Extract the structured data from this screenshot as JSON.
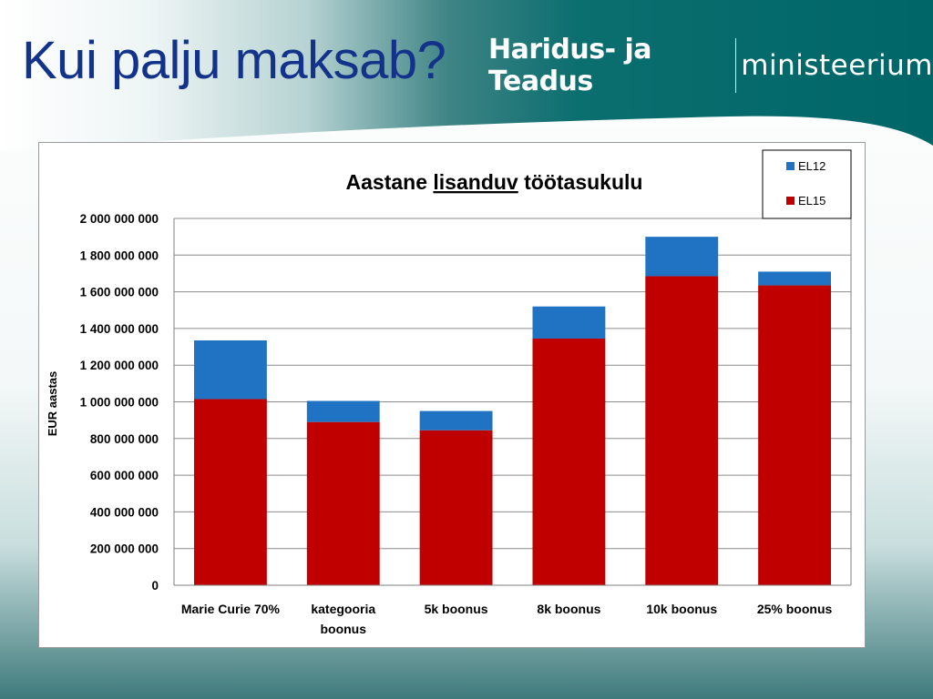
{
  "slide": {
    "title": "Kui palju maksab?",
    "logo": {
      "bold_text": "Haridus- ja Teadus",
      "light_text": "ministeerium"
    },
    "colors": {
      "title": "#13338a",
      "header_teal": "#006f70"
    }
  },
  "chart_data": {
    "type": "bar",
    "stacked": true,
    "title_parts": [
      "Aastane ",
      "lisanduv",
      " töötasukulu"
    ],
    "title_underlined_part": "lisanduv",
    "xlabel": "",
    "ylabel": "EUR aastas",
    "ylim": [
      0,
      2000000000
    ],
    "yticks": [
      0,
      200000000,
      400000000,
      600000000,
      800000000,
      1000000000,
      1200000000,
      1400000000,
      1600000000,
      1800000000,
      2000000000
    ],
    "ytick_labels": [
      "0",
      "200 000 000",
      "400 000 000",
      "600 000 000",
      "800 000 000",
      "1 000 000 000",
      "1 200 000 000",
      "1 400 000 000",
      "1 600 000 000",
      "1 800 000 000",
      "2 000 000 000"
    ],
    "categories": [
      "Marie Curie 70%",
      "kategooria boonus",
      "5k boonus",
      "8k boonus",
      "10k boonus",
      "25% boonus"
    ],
    "category_lines": [
      [
        "Marie Curie 70%"
      ],
      [
        "kategooria",
        "boonus"
      ],
      [
        "5k boonus"
      ],
      [
        "8k boonus"
      ],
      [
        "10k boonus"
      ],
      [
        "25% boonus"
      ]
    ],
    "series": [
      {
        "name": "EL15",
        "color": "#c00000",
        "values": [
          1015000000,
          890000000,
          845000000,
          1345000000,
          1685000000,
          1635000000
        ]
      },
      {
        "name": "EL12",
        "color": "#1f73c2",
        "values": [
          320000000,
          115000000,
          105000000,
          175000000,
          215000000,
          75000000
        ]
      }
    ],
    "legend": {
      "position": "top-right",
      "order": [
        "EL12",
        "EL15"
      ]
    },
    "grid": {
      "y": true,
      "x": false
    }
  }
}
